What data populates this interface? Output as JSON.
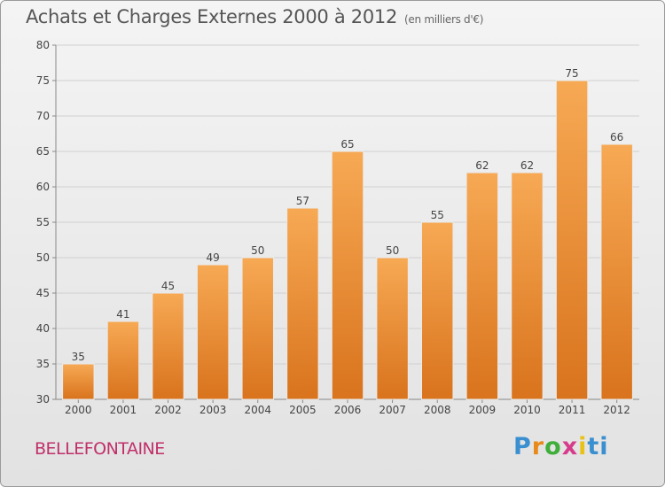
{
  "title": "Achats et Charges Externes 2000 à 2012",
  "subtitle": "(en milliers d'€)",
  "commune": "BELLEFONTAINE",
  "logo": {
    "text": "Proxiti"
  },
  "colors": {
    "bar_top": "#f7a954",
    "bar_bottom": "#d9731d",
    "commune": "#c0306a"
  },
  "chart_data": {
    "type": "bar",
    "categories": [
      "2000",
      "2001",
      "2002",
      "2003",
      "2004",
      "2005",
      "2006",
      "2007",
      "2008",
      "2009",
      "2010",
      "2011",
      "2012"
    ],
    "values": [
      35,
      41,
      45,
      49,
      50,
      57,
      65,
      50,
      55,
      62,
      62,
      75,
      66
    ],
    "value_labels": [
      "35",
      "41",
      "45",
      "49",
      "50",
      "57",
      "65",
      "50",
      "55",
      "62",
      "62",
      "75",
      "66"
    ],
    "ylim": [
      30,
      80
    ],
    "yticks": [
      "30",
      "35",
      "40",
      "45",
      "50",
      "55",
      "60",
      "65",
      "70",
      "75",
      "80"
    ],
    "grid": true,
    "legend": "none"
  }
}
